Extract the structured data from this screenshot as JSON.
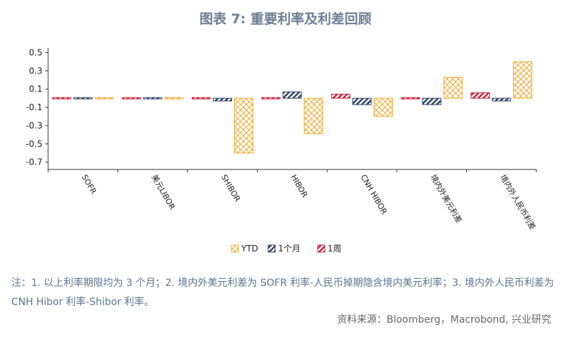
{
  "title": "图表 7: 重要利率及利差回顾",
  "notes": "注：1. 以上利率期限均为 3 个月；2. 境内外美元利差为 SOFR 利率-人民币掉期隐含境内美元利率；3. 境内外人民币利差为 CNH Hibor 利率-Shibor 利率。",
  "source": "资料来源：Bloomberg，Macrobond, 兴业研究",
  "colors": {
    "ytd": "#f0a830",
    "m1": "#2e4468",
    "w1": "#c8243a"
  },
  "chart_data": {
    "type": "bar",
    "categories": [
      "SOFR",
      "美元LIBOR",
      "SHIBOR",
      "HIBOR",
      "CNH HIBOR",
      "境内外美元利差",
      "境内外人民币利差"
    ],
    "series": [
      {
        "name": "1周",
        "values": [
          -0.005,
          -0.005,
          -0.01,
          0.015,
          0.045,
          0.005,
          0.06
        ]
      },
      {
        "name": "1个月",
        "values": [
          0.01,
          0.01,
          -0.03,
          0.07,
          -0.07,
          -0.07,
          -0.03
        ]
      },
      {
        "name": "YTD",
        "values": [
          0.0,
          0.01,
          -0.6,
          -0.39,
          -0.2,
          0.23,
          0.4
        ]
      }
    ],
    "legend_order": [
      "YTD",
      "1个月",
      "1周"
    ],
    "yticks": [
      0.5,
      0.3,
      0.1,
      -0.1,
      -0.3,
      -0.5,
      -0.7
    ],
    "ylim": [
      -0.78,
      0.55
    ],
    "legend_position": "bottom-center",
    "grid": false
  }
}
